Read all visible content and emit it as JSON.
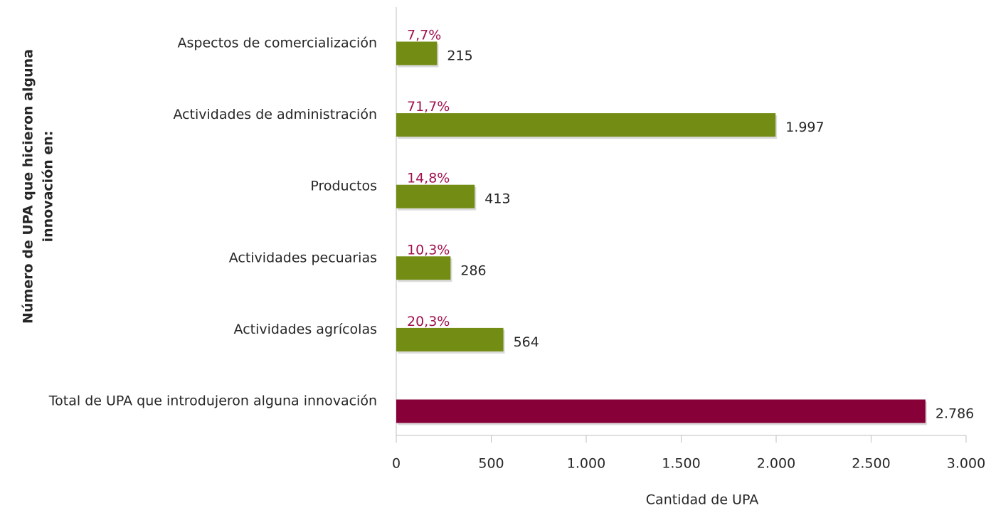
{
  "chart_data": {
    "type": "hbar",
    "y_axis_label": [
      "Número de UPA que hicieron alguna",
      "innovación en:"
    ],
    "x_axis_label": "Cantidad de UPA",
    "categories": [
      "Aspectos de comercialización",
      "Actividades de administración",
      "Productos",
      "Actividades pecuarias",
      "Actividades agrícolas",
      "Total de UPA que introdujeron alguna innovación"
    ],
    "values": [
      215,
      1997,
      413,
      286,
      564,
      2786
    ],
    "value_labels": [
      "215",
      "1.997",
      "413",
      "286",
      "564",
      "2.786"
    ],
    "share_labels": [
      "7,7%",
      "71,7%",
      "14,8%",
      "10,3%",
      "20,3%",
      null
    ],
    "colors": [
      "#728c14",
      "#728c14",
      "#728c14",
      "#728c14",
      "#728c14",
      "#870038"
    ],
    "share_color": "#a0104f",
    "xlim": [
      0,
      3000
    ],
    "xticks": [
      0,
      500,
      {
        "value": 1000,
        "label": "1.000"
      },
      {
        "value": 1500,
        "label": "1.500"
      },
      {
        "value": 2000,
        "label": "2.000"
      },
      {
        "value": 2500,
        "label": "2.500"
      },
      {
        "value": 3000,
        "label": "3.000"
      }
    ]
  }
}
